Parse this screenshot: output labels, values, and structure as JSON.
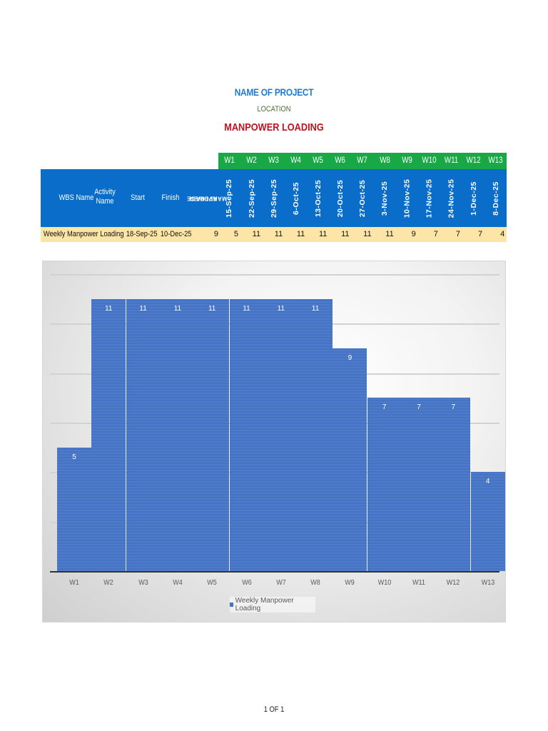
{
  "header": {
    "project": "NAME OF PROJECT",
    "location": "LOCATION",
    "title": "MANPOWER LOADING"
  },
  "table": {
    "columns": {
      "wbs_name": "WBS Name",
      "activity_name": "Activity Name",
      "activity_line1": "Activity",
      "activity_line2": "Name",
      "start": "Start",
      "finish": "Finish",
      "average_line1": "AVERAGE",
      "average_line2": "MANPOWER"
    },
    "weeks": [
      "W1",
      "W2",
      "W3",
      "W4",
      "W5",
      "W6",
      "W7",
      "W8",
      "W9",
      "W10",
      "W11",
      "W12",
      "W13"
    ],
    "week_dates": [
      "15-Sep-25",
      "22-Sep-25",
      "29-Sep-25",
      "6-Oct-25",
      "13-Oct-25",
      "20-Oct-25",
      "27-Oct-25",
      "3-Nov-25",
      "10-Nov-25",
      "17-Nov-25",
      "24-Nov-25",
      "1-Dec-25",
      "8-Dec-25"
    ],
    "row": {
      "name": "Weekly Manpower Loading",
      "start": "18-Sep-25",
      "finish": "10-Dec-25",
      "average": "9",
      "values": [
        "5",
        "11",
        "11",
        "11",
        "11",
        "11",
        "11",
        "11",
        "9",
        "7",
        "7",
        "7",
        "4"
      ]
    }
  },
  "colors": {
    "green_header": "#19a846",
    "blue_header": "#0a6dc9",
    "data_row": "#fde5a8",
    "bar": "#4472c4",
    "project_title": "#1f7ad1",
    "main_title": "#c0121c"
  },
  "chart_data": {
    "type": "bar",
    "title": "",
    "categories": [
      "W1",
      "W2",
      "W3",
      "W4",
      "W5",
      "W6",
      "W7",
      "W8",
      "W9",
      "W10",
      "W11",
      "W12",
      "W13"
    ],
    "series": [
      {
        "name": "Weekly Manpower Loading",
        "values": [
          5,
          11,
          11,
          11,
          11,
          11,
          11,
          11,
          9,
          7,
          7,
          7,
          4
        ]
      }
    ],
    "xlabel": "",
    "ylabel": "",
    "ylim": [
      0,
      12
    ],
    "y_gridlines": [
      2,
      4,
      6,
      8,
      10,
      12
    ],
    "grid": true,
    "data_labels": true,
    "legend_position": "bottom"
  },
  "footer": {
    "page": "1 OF 1"
  }
}
